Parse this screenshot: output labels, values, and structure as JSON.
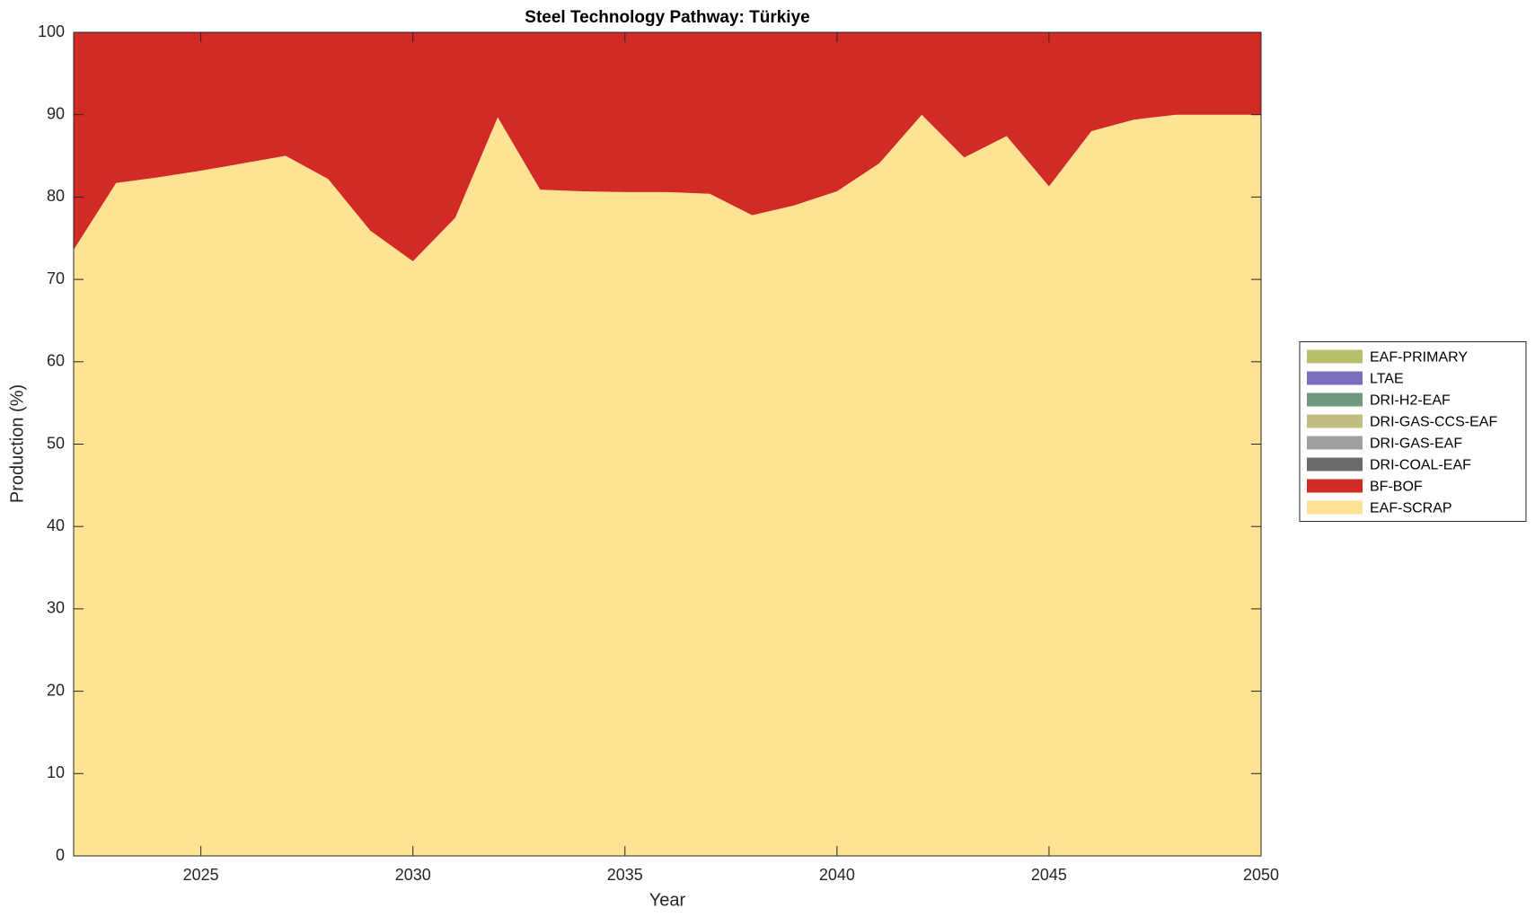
{
  "chart_data": {
    "type": "stacked-area",
    "title": "Steel Technology Pathway: Türkiye",
    "x_label": "Year",
    "y_label": "Production (%)",
    "x": [
      2022,
      2023,
      2024,
      2025,
      2026,
      2027,
      2028,
      2029,
      2030,
      2031,
      2032,
      2033,
      2034,
      2035,
      2036,
      2037,
      2038,
      2039,
      2040,
      2041,
      2042,
      2043,
      2044,
      2045,
      2046,
      2047,
      2048,
      2049,
      2050
    ],
    "series": [
      {
        "name": "EAF-SCRAP",
        "color": "#fee394",
        "values": [
          73.6,
          81.7,
          82.4,
          83.2,
          84.1,
          85.0,
          82.2,
          75.9,
          72.2,
          77.5,
          89.7,
          80.9,
          80.7,
          80.6,
          80.6,
          80.4,
          77.8,
          79.0,
          80.7,
          84.1,
          90.0,
          84.8,
          87.4,
          81.3,
          88.0,
          89.4,
          90.0,
          90.0,
          90.0
        ]
      },
      {
        "name": "BF-BOF",
        "color": "#d22b26",
        "values": [
          26.4,
          18.3,
          17.6,
          16.8,
          15.9,
          15.0,
          17.8,
          24.1,
          27.8,
          22.5,
          10.3,
          19.1,
          19.3,
          19.4,
          19.4,
          19.6,
          22.2,
          21.0,
          19.3,
          15.9,
          10.0,
          15.2,
          12.6,
          18.7,
          12.0,
          10.6,
          10.0,
          10.0,
          10.0
        ]
      },
      {
        "name": "DRI-COAL-EAF",
        "color": "#6b6b6b",
        "values": [
          0,
          0,
          0,
          0,
          0,
          0,
          0,
          0,
          0,
          0,
          0,
          0,
          0,
          0,
          0,
          0,
          0,
          0,
          0,
          0,
          0,
          0,
          0,
          0,
          0,
          0,
          0,
          0,
          0
        ]
      },
      {
        "name": "DRI-GAS-EAF",
        "color": "#a0a0a0",
        "values": [
          0,
          0,
          0,
          0,
          0,
          0,
          0,
          0,
          0,
          0,
          0,
          0,
          0,
          0,
          0,
          0,
          0,
          0,
          0,
          0,
          0,
          0,
          0,
          0,
          0,
          0,
          0,
          0,
          0
        ]
      },
      {
        "name": "DRI-GAS-CCS-EAF",
        "color": "#c3bc82",
        "values": [
          0,
          0,
          0,
          0,
          0,
          0,
          0,
          0,
          0,
          0,
          0,
          0,
          0,
          0,
          0,
          0,
          0,
          0,
          0,
          0,
          0,
          0,
          0,
          0,
          0,
          0,
          0,
          0,
          0
        ]
      },
      {
        "name": "DRI-H2-EAF",
        "color": "#6f987c",
        "values": [
          0,
          0,
          0,
          0,
          0,
          0,
          0,
          0,
          0,
          0,
          0,
          0,
          0,
          0,
          0,
          0,
          0,
          0,
          0,
          0,
          0,
          0,
          0,
          0,
          0,
          0,
          0,
          0,
          0
        ]
      },
      {
        "name": "LTAE",
        "color": "#7b6ec0",
        "values": [
          0,
          0,
          0,
          0,
          0,
          0,
          0,
          0,
          0,
          0,
          0,
          0,
          0,
          0,
          0,
          0,
          0,
          0,
          0,
          0,
          0,
          0,
          0,
          0,
          0,
          0,
          0,
          0,
          0
        ]
      },
      {
        "name": "EAF-PRIMARY",
        "color": "#b9c06c",
        "values": [
          0,
          0,
          0,
          0,
          0,
          0,
          0,
          0,
          0,
          0,
          0,
          0,
          0,
          0,
          0,
          0,
          0,
          0,
          0,
          0,
          0,
          0,
          0,
          0,
          0,
          0,
          0,
          0,
          0
        ]
      }
    ],
    "xlim": [
      2022,
      2050
    ],
    "xticks": [
      2025,
      2030,
      2035,
      2040,
      2045,
      2050
    ],
    "ylim": [
      0,
      100
    ],
    "yticks": [
      0,
      10,
      20,
      30,
      40,
      50,
      60,
      70,
      80,
      90,
      100
    ],
    "legend": "right"
  }
}
